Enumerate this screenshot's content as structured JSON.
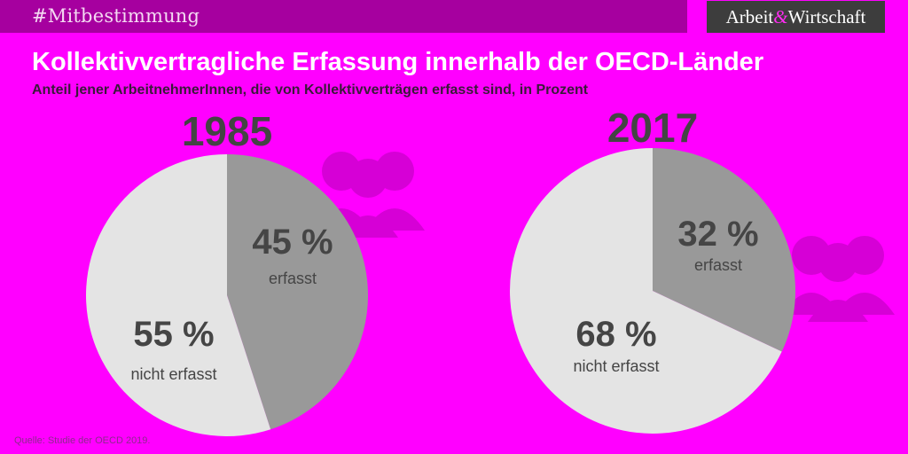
{
  "header": {
    "hashtag": "#Mitbestimmung",
    "logo_left": "Arbeit",
    "logo_amp": "&",
    "logo_right": "Wirtschaft"
  },
  "title": "Kollektivvertragliche Erfassung innerhalb der OECD-Länder",
  "subtitle": "Anteil jener ArbeitnehmerInnen, die von Kollektivverträgen erfasst sind, in Prozent",
  "source": "Quelle:  Studie der OECD 2019.",
  "colors": {
    "background": "#ff00ff",
    "header_bar": "#a6009f",
    "covered": "#999999",
    "not_covered": "#e4e4e4",
    "text_dark": "#444444",
    "icon_decor": "#d600d6"
  },
  "icons": [
    "people-icon"
  ],
  "chart_data": [
    {
      "type": "pie",
      "title": "1985",
      "slices": [
        {
          "name": "erfasst",
          "value": 45,
          "label": "45 %"
        },
        {
          "name": "nicht erfasst",
          "value": 55,
          "label": "55 %"
        }
      ]
    },
    {
      "type": "pie",
      "title": "2017",
      "slices": [
        {
          "name": "erfasst",
          "value": 32,
          "label": "32 %"
        },
        {
          "name": "nicht erfasst",
          "value": 68,
          "label": "68 %"
        }
      ]
    }
  ]
}
